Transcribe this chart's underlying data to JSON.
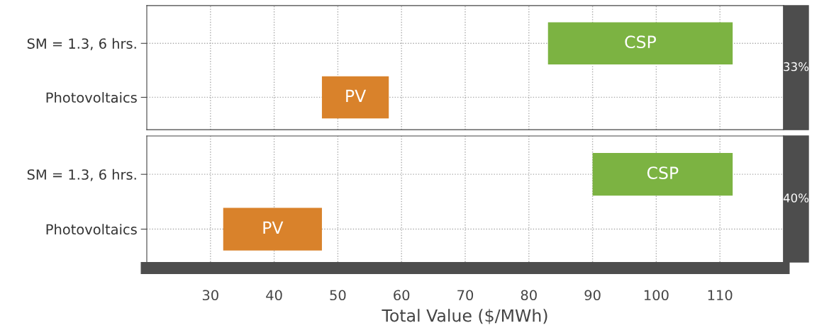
{
  "chart_data": [
    {
      "type": "bar",
      "orientation": "horizontal",
      "categories": [
        "SM = 1.3, 6 hrs.",
        "Photovoltaics"
      ],
      "base": [
        83,
        47.5
      ],
      "values": [
        29,
        10.5
      ],
      "colors": [
        "#7cb342",
        "#d9822b"
      ],
      "value_labels": [
        "CSP",
        "PV"
      ],
      "xlim": [
        20,
        120
      ],
      "xticks": [
        30,
        40,
        50,
        60,
        70,
        80,
        90,
        100,
        110
      ],
      "grid": true,
      "tick_labels": "y",
      "annotations": [
        "33%"
      ]
    },
    {
      "type": "bar",
      "orientation": "horizontal",
      "categories": [
        "SM = 1.3, 6 hrs.",
        "Photovoltaics"
      ],
      "base": [
        90,
        32
      ],
      "values": [
        22,
        15.5
      ],
      "colors": [
        "#7cb342",
        "#d9822b"
      ],
      "value_labels": [
        "CSP",
        "PV"
      ],
      "xlim": [
        20,
        120
      ],
      "xticks": [
        30,
        40,
        50,
        60,
        70,
        80,
        90,
        100,
        110
      ],
      "grid": true,
      "xlabel": "Total Value ($/MWh)",
      "annotations": [
        "40%"
      ]
    }
  ]
}
